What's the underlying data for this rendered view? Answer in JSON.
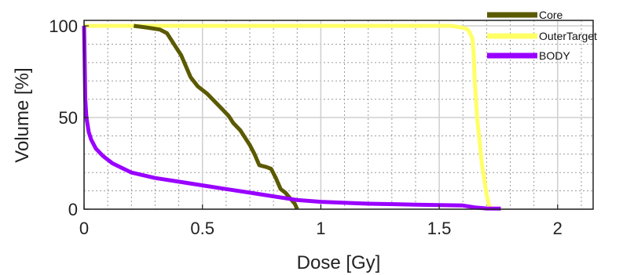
{
  "chart_data": {
    "type": "line",
    "title": "",
    "xlabel": "Dose [Gy]",
    "ylabel": "Volume [%]",
    "xlim": [
      0,
      2.15
    ],
    "ylim": [
      0,
      103
    ],
    "xticks": [
      0,
      0.5,
      1,
      1.5,
      2
    ],
    "xtick_labels": [
      "0",
      "0.5",
      "1",
      "1.5",
      "2"
    ],
    "yticks": [
      0,
      50,
      100
    ],
    "ytick_labels": [
      "0",
      "50",
      "100"
    ],
    "grid": true,
    "minor_grid": true,
    "legend_position": "top-right",
    "series": [
      {
        "name": "Core",
        "color": "#5b5a00",
        "x": [
          0.21,
          0.27,
          0.32,
          0.35,
          0.37,
          0.39,
          0.41,
          0.43,
          0.45,
          0.48,
          0.52,
          0.55,
          0.58,
          0.61,
          0.63,
          0.66,
          0.68,
          0.7,
          0.72,
          0.74,
          0.77,
          0.79,
          0.81,
          0.83,
          0.85,
          0.87,
          0.89,
          0.9
        ],
        "y": [
          100,
          99,
          98,
          96,
          92,
          88,
          84,
          78,
          72,
          67,
          63,
          59,
          55,
          51,
          47,
          43,
          39,
          35,
          30,
          24,
          23,
          22,
          17,
          11,
          9,
          6,
          3,
          0
        ]
      },
      {
        "name": "OuterTarget",
        "color": "#ffff66",
        "x": [
          0,
          0.5,
          1,
          1.55,
          1.6,
          1.62,
          1.63,
          1.64,
          1.645,
          1.65,
          1.66,
          1.68,
          1.7,
          1.71,
          1.72
        ],
        "y": [
          100,
          100,
          100,
          100,
          99,
          98,
          96,
          93,
          85,
          70,
          50,
          25,
          8,
          2,
          0
        ]
      },
      {
        "name": "BODY",
        "color": "#9900ff",
        "x": [
          0,
          0.002,
          0.005,
          0.01,
          0.02,
          0.03,
          0.05,
          0.08,
          0.12,
          0.2,
          0.3,
          0.4,
          0.5,
          0.6,
          0.7,
          0.8,
          0.9,
          1.0,
          1.2,
          1.4,
          1.6,
          1.65,
          1.7,
          1.76
        ],
        "y": [
          100,
          85,
          60,
          50,
          42,
          38,
          33,
          29,
          25,
          20,
          17,
          15,
          13,
          11,
          9,
          7,
          5,
          4,
          3,
          2.5,
          2,
          1,
          0.4,
          0.3
        ]
      }
    ]
  }
}
